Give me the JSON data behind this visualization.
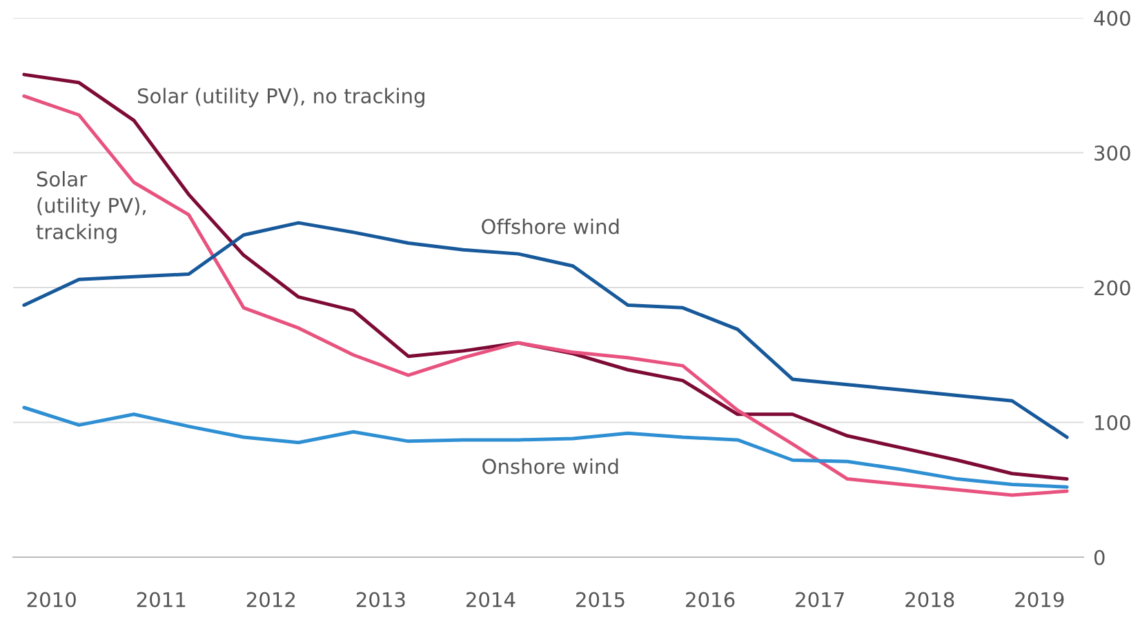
{
  "chart_data": {
    "type": "line",
    "x": [
      2009.75,
      2010.25,
      2010.75,
      2011.25,
      2011.75,
      2012.25,
      2012.75,
      2013.25,
      2013.75,
      2014.25,
      2014.75,
      2015.25,
      2015.75,
      2016.25,
      2016.75,
      2017.25,
      2017.75,
      2018.25,
      2018.75,
      2019.25
    ],
    "series": [
      {
        "name": "Solar (utility PV), no tracking",
        "color": "#7d0b35",
        "values": [
          358,
          352,
          324,
          269,
          224,
          193,
          183,
          149,
          153,
          159,
          151,
          139,
          131,
          106,
          106,
          90,
          81,
          72,
          62,
          58
        ]
      },
      {
        "name": "Solar (utility PV), tracking",
        "color": "#e8527f",
        "values": [
          342,
          328,
          278,
          254,
          185,
          170,
          150,
          135,
          148,
          159,
          152,
          148,
          142,
          109,
          84,
          58,
          54,
          50,
          46,
          49
        ]
      },
      {
        "name": "Offshore wind",
        "color": "#17599a",
        "values": [
          187,
          206,
          208,
          210,
          239,
          248,
          241,
          233,
          228,
          225,
          216,
          187,
          185,
          169,
          132,
          128,
          124,
          120,
          116,
          89
        ]
      },
      {
        "name": "Onshore wind",
        "color": "#2e8fd3",
        "values": [
          111,
          98,
          106,
          97,
          89,
          85,
          93,
          86,
          87,
          87,
          88,
          92,
          89,
          87,
          72,
          71,
          65,
          58,
          54,
          52
        ]
      }
    ],
    "xlim": [
      2009.65,
      2019.4
    ],
    "ylim": [
      0,
      400
    ],
    "xticks": [
      2010,
      2011,
      2012,
      2013,
      2014,
      2015,
      2016,
      2017,
      2018,
      2019
    ],
    "yticks": [
      0,
      100,
      200,
      300,
      400
    ],
    "grid": "y"
  }
}
